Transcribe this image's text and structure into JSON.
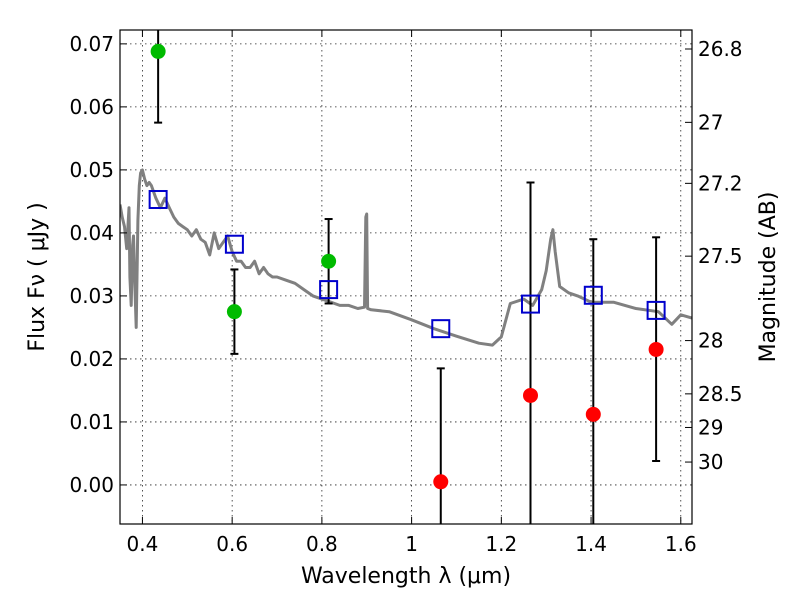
{
  "chart_data": {
    "type": "scatter",
    "xlabel": "Wavelength  λ (μm)",
    "ylabel": "Flux  Fν  ( μJy )",
    "y2label": "Magnitude (AB)",
    "xlim": [
      0.35,
      1.625
    ],
    "ylim": [
      -0.0062,
      0.0722
    ],
    "grid": true,
    "x_ticks": [
      {
        "value": 0.4,
        "label": "0.4"
      },
      {
        "value": 0.6,
        "label": "0.6"
      },
      {
        "value": 0.8,
        "label": "0.8"
      },
      {
        "value": 1.0,
        "label": "1"
      },
      {
        "value": 1.2,
        "label": "1.2"
      },
      {
        "value": 1.4,
        "label": "1.4"
      },
      {
        "value": 1.6,
        "label": "1.6"
      }
    ],
    "y_ticks": [
      {
        "value": 0.0,
        "label": "0.00"
      },
      {
        "value": 0.01,
        "label": "0.01"
      },
      {
        "value": 0.02,
        "label": "0.02"
      },
      {
        "value": 0.03,
        "label": "0.03"
      },
      {
        "value": 0.04,
        "label": "0.04"
      },
      {
        "value": 0.05,
        "label": "0.05"
      },
      {
        "value": 0.06,
        "label": "0.06"
      },
      {
        "value": 0.07,
        "label": "0.07"
      }
    ],
    "mag_ticks": [
      {
        "value": 26.8,
        "label": "26.8"
      },
      {
        "value": 27.0,
        "label": "27"
      },
      {
        "value": 27.2,
        "label": "27.2"
      },
      {
        "value": 27.5,
        "label": "27.5"
      },
      {
        "value": 28.0,
        "label": "28"
      },
      {
        "value": 28.5,
        "label": "28.5"
      },
      {
        "value": 29.0,
        "label": "29"
      },
      {
        "value": 30.0,
        "label": "30"
      }
    ],
    "model_spectrum": {
      "color": "#808080",
      "x": [
        0.35,
        0.355,
        0.36,
        0.365,
        0.37,
        0.372,
        0.375,
        0.378,
        0.38,
        0.383,
        0.386,
        0.39,
        0.393,
        0.396,
        0.4,
        0.405,
        0.41,
        0.415,
        0.42,
        0.43,
        0.44,
        0.45,
        0.46,
        0.47,
        0.48,
        0.49,
        0.5,
        0.51,
        0.52,
        0.53,
        0.54,
        0.55,
        0.56,
        0.57,
        0.58,
        0.59,
        0.6,
        0.61,
        0.62,
        0.63,
        0.64,
        0.65,
        0.66,
        0.67,
        0.68,
        0.69,
        0.7,
        0.72,
        0.74,
        0.76,
        0.78,
        0.8,
        0.82,
        0.84,
        0.86,
        0.88,
        0.895,
        0.898,
        0.9,
        0.902,
        0.91,
        0.95,
        1.0,
        1.05,
        1.1,
        1.15,
        1.18,
        1.2,
        1.22,
        1.25,
        1.27,
        1.29,
        1.3,
        1.31,
        1.315,
        1.32,
        1.33,
        1.35,
        1.37,
        1.4,
        1.45,
        1.5,
        1.55,
        1.58,
        1.6,
        1.625
      ],
      "y": [
        0.0445,
        0.0425,
        0.041,
        0.0375,
        0.044,
        0.033,
        0.0285,
        0.038,
        0.0395,
        0.032,
        0.025,
        0.042,
        0.0475,
        0.0495,
        0.05,
        0.0485,
        0.0475,
        0.048,
        0.0475,
        0.0455,
        0.044,
        0.0455,
        0.044,
        0.0425,
        0.0415,
        0.041,
        0.0405,
        0.0395,
        0.0405,
        0.039,
        0.0385,
        0.0365,
        0.04,
        0.0375,
        0.0385,
        0.0395,
        0.037,
        0.0355,
        0.0355,
        0.0345,
        0.0345,
        0.0355,
        0.0335,
        0.0345,
        0.0335,
        0.033,
        0.033,
        0.0325,
        0.032,
        0.031,
        0.03,
        0.0295,
        0.029,
        0.0285,
        0.0285,
        0.028,
        0.0282,
        0.0425,
        0.043,
        0.028,
        0.0278,
        0.0275,
        0.0262,
        0.0248,
        0.0236,
        0.0225,
        0.0222,
        0.0235,
        0.0288,
        0.0295,
        0.0285,
        0.031,
        0.034,
        0.039,
        0.0405,
        0.037,
        0.0315,
        0.0305,
        0.03,
        0.029,
        0.029,
        0.028,
        0.0275,
        0.0255,
        0.027,
        0.0265
      ]
    },
    "series": [
      {
        "color": "#00bb00",
        "marker": "circle",
        "points": [
          {
            "x": 0.435,
            "y": 0.0688,
            "yerr_low": 0.0575,
            "yerr_high": 0.0722
          },
          {
            "x": 0.605,
            "y": 0.0275,
            "yerr_low": 0.0208,
            "yerr_high": 0.0342
          },
          {
            "x": 0.815,
            "y": 0.0355,
            "yerr_low": 0.0288,
            "yerr_high": 0.0422
          }
        ]
      },
      {
        "color": "#ff0000",
        "marker": "circle",
        "points": [
          {
            "x": 1.065,
            "y": 0.0005,
            "yerr_low": -0.0062,
            "yerr_high": 0.0185
          },
          {
            "x": 1.265,
            "y": 0.0142,
            "yerr_low": -0.0062,
            "yerr_high": 0.048
          },
          {
            "x": 1.405,
            "y": 0.0112,
            "yerr_low": -0.0062,
            "yerr_high": 0.039
          },
          {
            "x": 1.545,
            "y": 0.0215,
            "yerr_low": 0.0038,
            "yerr_high": 0.0393
          }
        ]
      },
      {
        "color": "#0000cc",
        "marker": "square",
        "points": [
          {
            "x": 0.435,
            "y": 0.0453
          },
          {
            "x": 0.605,
            "y": 0.0382
          },
          {
            "x": 0.815,
            "y": 0.031
          },
          {
            "x": 1.065,
            "y": 0.0248
          },
          {
            "x": 1.265,
            "y": 0.0287
          },
          {
            "x": 1.405,
            "y": 0.0301
          },
          {
            "x": 1.545,
            "y": 0.0277
          }
        ]
      }
    ]
  }
}
